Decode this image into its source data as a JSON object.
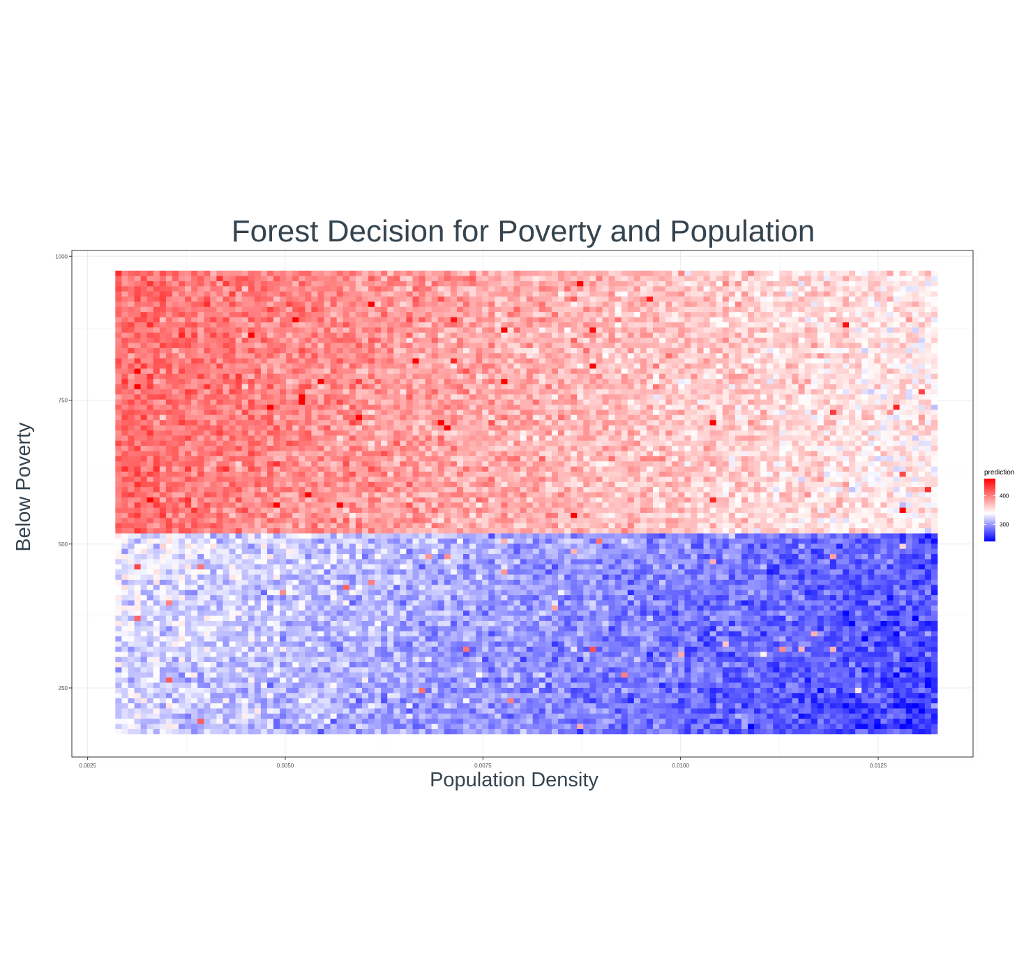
{
  "chart_data": {
    "type": "heatmap",
    "title": "Forest Decision for Poverty and Population",
    "xlabel": "Population Density",
    "ylabel": "Below Poverty",
    "xlim": [
      0.0023,
      0.0137
    ],
    "ylim": [
      130,
      1010
    ],
    "x_ticks": [
      0.0025,
      0.005,
      0.0075,
      0.01,
      0.0125
    ],
    "x_tick_labels": [
      "0.0025",
      "0.0050",
      "0.0075",
      "0.0100",
      "0.0125"
    ],
    "y_ticks": [
      250,
      500,
      750,
      1000
    ],
    "y_tick_labels": [
      "250",
      "500",
      "750",
      "1000"
    ],
    "x_range": [
      0.00285,
      0.01325
    ],
    "y_range": [
      170,
      975
    ],
    "grid": true,
    "legend": {
      "title": "prediction",
      "position": "right",
      "ticks": [
        400,
        300
      ],
      "tick_labels": [
        "400",
        "300"
      ],
      "range": [
        240,
        460
      ]
    },
    "colors": {
      "low": "#0000ff",
      "mid": "#ffffff",
      "high": "#ff0000",
      "midpoint": 340
    },
    "trend_note_values": {
      "high_poverty_low_density": 410,
      "high_poverty_high_density": 350,
      "low_poverty_low_density": 335,
      "low_poverty_high_density": 275
    }
  }
}
